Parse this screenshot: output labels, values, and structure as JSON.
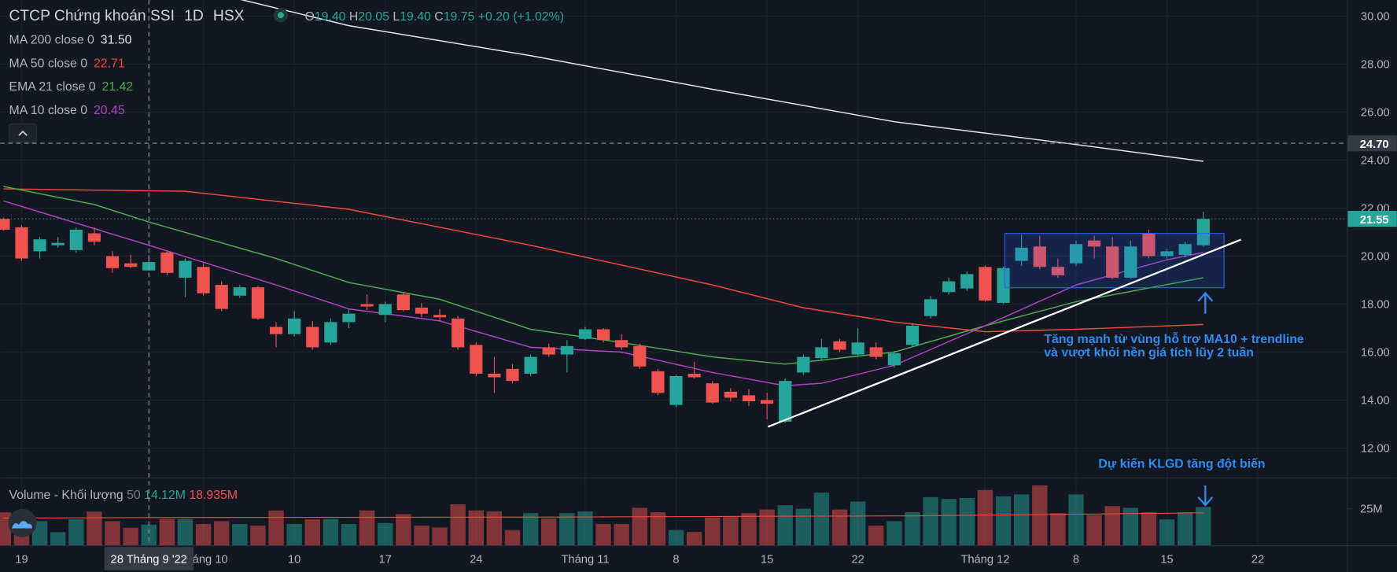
{
  "chart_data": {
    "type": "candlestick",
    "title": "CTCP Chứng khoán SSI",
    "interval": "1D",
    "exchange": "HSX",
    "ohlc_labels": [
      "O",
      "H",
      "L",
      "C"
    ],
    "ohlc_values": [
      "19.40",
      "20.05",
      "19.40",
      "19.75"
    ],
    "change": "+0.20 (+1.02%)",
    "up_color": "#26a69a",
    "down_color": "#ef5350",
    "grid": true,
    "indicators": [
      {
        "name": "MA 200 close 0",
        "value": "31.50",
        "color": "#e8e8e8",
        "x": [
          13,
          19,
          29,
          39,
          49,
          59,
          66
        ],
        "values": [
          30.7,
          29.6,
          28.35,
          26.95,
          25.6,
          24.65,
          23.95
        ]
      },
      {
        "name": "MA 50 close 0",
        "value": "22.71",
        "color": "#f2493f",
        "x": [
          0,
          10,
          19,
          29,
          39,
          44,
          49,
          54,
          59,
          66
        ],
        "values": [
          22.8,
          22.7,
          21.95,
          20.45,
          18.8,
          17.85,
          17.25,
          16.85,
          16.95,
          17.15
        ]
      },
      {
        "name": "EMA 21 close 0",
        "value": "21.42",
        "color": "#4caf50",
        "x": [
          0,
          5,
          8,
          15,
          19,
          24,
          29,
          34,
          39,
          43,
          49,
          54,
          59,
          66
        ],
        "values": [
          22.9,
          22.15,
          21.42,
          19.9,
          18.9,
          18.2,
          16.95,
          16.4,
          15.8,
          15.5,
          16.0,
          17.1,
          18.1,
          19.1
        ]
      },
      {
        "name": "MA 10 close 0",
        "value": "20.45",
        "color": "#b144c6",
        "x": [
          0,
          8,
          15,
          19,
          24,
          29,
          34,
          39,
          43,
          45,
          49,
          54,
          59,
          64,
          66
        ],
        "values": [
          22.3,
          20.45,
          18.8,
          17.8,
          17.3,
          16.2,
          16.0,
          15.15,
          14.6,
          14.7,
          15.45,
          17.1,
          18.8,
          19.85,
          20.15
        ]
      }
    ],
    "open": [
      21.55,
      21.2,
      20.2,
      20.45,
      20.25,
      20.95,
      20.0,
      19.7,
      19.4,
      20.15,
      19.1,
      19.55,
      18.8,
      18.35,
      18.7,
      17.05,
      16.75,
      17.05,
      16.4,
      17.25,
      18.0,
      17.55,
      18.4,
      17.85,
      17.55,
      17.4,
      16.3,
      15.1,
      15.3,
      15.1,
      16.2,
      15.9,
      16.55,
      16.95,
      16.5,
      16.25,
      15.2,
      13.8,
      15.1,
      14.7,
      14.35,
      14.2,
      14.0,
      13.1,
      15.15,
      15.75,
      16.45,
      15.9,
      16.2,
      15.45,
      16.3,
      17.5,
      18.5,
      18.65,
      19.55,
      18.05,
      19.8,
      20.4,
      19.55,
      19.7,
      20.65,
      20.4,
      19.1,
      20.95,
      20.0,
      20.05,
      20.45
    ],
    "high": [
      21.6,
      21.3,
      20.8,
      20.8,
      21.2,
      21.2,
      20.2,
      20.05,
      20.05,
      20.25,
      19.9,
      19.7,
      18.95,
      18.8,
      18.75,
      17.25,
      17.7,
      17.3,
      17.4,
      17.8,
      18.4,
      18.1,
      18.5,
      18.05,
      17.8,
      17.5,
      16.4,
      15.8,
      15.5,
      15.9,
      16.35,
      16.5,
      17.05,
      17.0,
      16.75,
      16.35,
      15.3,
      15.05,
      15.6,
      14.8,
      14.5,
      14.45,
      14.3,
      14.9,
      15.9,
      16.55,
      16.55,
      17.0,
      16.4,
      16.05,
      17.2,
      18.35,
      19.1,
      19.35,
      19.6,
      19.55,
      20.9,
      20.85,
      19.9,
      20.65,
      20.85,
      20.8,
      20.65,
      21.1,
      20.3,
      20.6,
      21.85
    ],
    "low": [
      21.05,
      19.8,
      19.9,
      20.35,
      20.15,
      20.45,
      19.3,
      19.5,
      19.4,
      19.2,
      18.3,
      18.35,
      17.7,
      18.25,
      17.35,
      16.2,
      16.65,
      16.1,
      16.3,
      17.0,
      17.75,
      17.25,
      17.7,
      17.45,
      17.3,
      16.1,
      15.0,
      14.3,
      14.7,
      15.0,
      15.8,
      15.15,
      16.5,
      16.4,
      16.1,
      15.3,
      14.2,
      13.7,
      14.9,
      13.85,
      13.95,
      13.75,
      13.2,
      13.05,
      15.05,
      15.65,
      16.0,
      15.8,
      15.7,
      15.35,
      16.2,
      17.4,
      18.4,
      18.55,
      18.1,
      18.0,
      19.6,
      19.45,
      19.1,
      19.6,
      19.9,
      19.05,
      19.05,
      19.9,
      19.9,
      19.95,
      20.4
    ],
    "close": [
      21.1,
      19.9,
      20.7,
      20.55,
      21.1,
      20.6,
      19.5,
      19.55,
      19.75,
      19.3,
      19.8,
      18.45,
      17.8,
      18.7,
      17.4,
      16.75,
      17.4,
      16.2,
      17.25,
      17.6,
      17.9,
      18.0,
      17.75,
      17.6,
      17.45,
      16.2,
      15.1,
      14.95,
      14.8,
      15.8,
      15.9,
      16.25,
      16.95,
      16.5,
      16.2,
      15.4,
      14.3,
      15.0,
      14.95,
      13.9,
      14.1,
      13.95,
      13.85,
      14.8,
      15.8,
      16.2,
      16.1,
      16.4,
      15.8,
      15.95,
      17.1,
      18.2,
      18.95,
      19.25,
      18.15,
      19.5,
      20.35,
      19.55,
      19.2,
      20.5,
      20.4,
      19.1,
      20.4,
      20.0,
      20.2,
      20.5,
      21.55
    ],
    "xlim": [
      -0.18,
      73.9
    ],
    "xticks": [
      {
        "value": 1,
        "label": "19"
      },
      {
        "value": 11,
        "label": "Tháng 10"
      },
      {
        "value": 16,
        "label": "10"
      },
      {
        "value": 21,
        "label": "17"
      },
      {
        "value": 26,
        "label": "24"
      },
      {
        "value": 32,
        "label": "Tháng 11"
      },
      {
        "value": 37,
        "label": "8"
      },
      {
        "value": 42,
        "label": "15"
      },
      {
        "value": 47,
        "label": "22"
      },
      {
        "value": 54,
        "label": "Tháng 12"
      },
      {
        "value": 59,
        "label": "8"
      },
      {
        "value": 64,
        "label": "15"
      },
      {
        "value": 69,
        "label": "22"
      }
    ],
    "ylim": [
      10.81,
      30.67
    ],
    "yticks": [
      {
        "value": 12,
        "label": "12.00"
      },
      {
        "value": 14,
        "label": "14.00"
      },
      {
        "value": 16,
        "label": "16.00"
      },
      {
        "value": 18,
        "label": "18.00"
      },
      {
        "value": 20,
        "label": "20.00"
      },
      {
        "value": 22,
        "label": "22.00"
      },
      {
        "value": 24,
        "label": "24.00"
      },
      {
        "value": 26,
        "label": "26.00"
      },
      {
        "value": 28,
        "label": "28.00"
      },
      {
        "value": 30,
        "label": "30.00"
      }
    ],
    "crosshair": {
      "x": 8,
      "x_label": "28 Tháng 9 '22",
      "price": {
        "value": 24.7,
        "label": "24.70"
      }
    },
    "last_price": {
      "value": 21.55,
      "label": "21.55"
    },
    "volume": {
      "title": "Volume - Khối lượng",
      "period": "50",
      "value": "14.12M",
      "ma_value": "18.935M",
      "values": [
        22.5,
        13.4,
        16.5,
        9,
        17.7,
        23,
        16.5,
        12,
        14.12,
        18,
        18,
        14.6,
        16.5,
        14.6,
        13.4,
        23.8,
        14.6,
        17.7,
        18,
        14.6,
        23.8,
        15.2,
        21.3,
        13.4,
        12.2,
        28,
        23.8,
        23.2,
        10.4,
        22,
        18.3,
        22,
        23.2,
        14.6,
        14.6,
        25.6,
        22.6,
        10.4,
        9.1,
        18.9,
        19.5,
        22,
        24.4,
        27.4,
        25,
        36,
        24.4,
        29.9,
        13.4,
        16.5,
        22.6,
        32.9,
        31.7,
        32.3,
        37.8,
        33.5,
        34.8,
        40.9,
        22,
        34.8,
        20.7,
        26.8,
        25.6,
        22.6,
        17.7,
        22.6,
        26.2
      ],
      "ylim": [
        0,
        45.7
      ],
      "yticks": [
        {
          "value": 25,
          "label": "25M"
        }
      ],
      "ma": {
        "color": "#f2493f",
        "x": [
          0,
          8,
          30,
          50,
          66
        ],
        "values": [
          18.6,
          18.935,
          19.3,
          20.1,
          22.2
        ]
      }
    },
    "annotations": [
      "Tăng mạnh từ vùng hỗ trợ MA10 + trendline",
      "và vượt khỏi nền giá tích lũy 2 tuần",
      "Dự kiến KLGD tăng đột biến"
    ]
  }
}
